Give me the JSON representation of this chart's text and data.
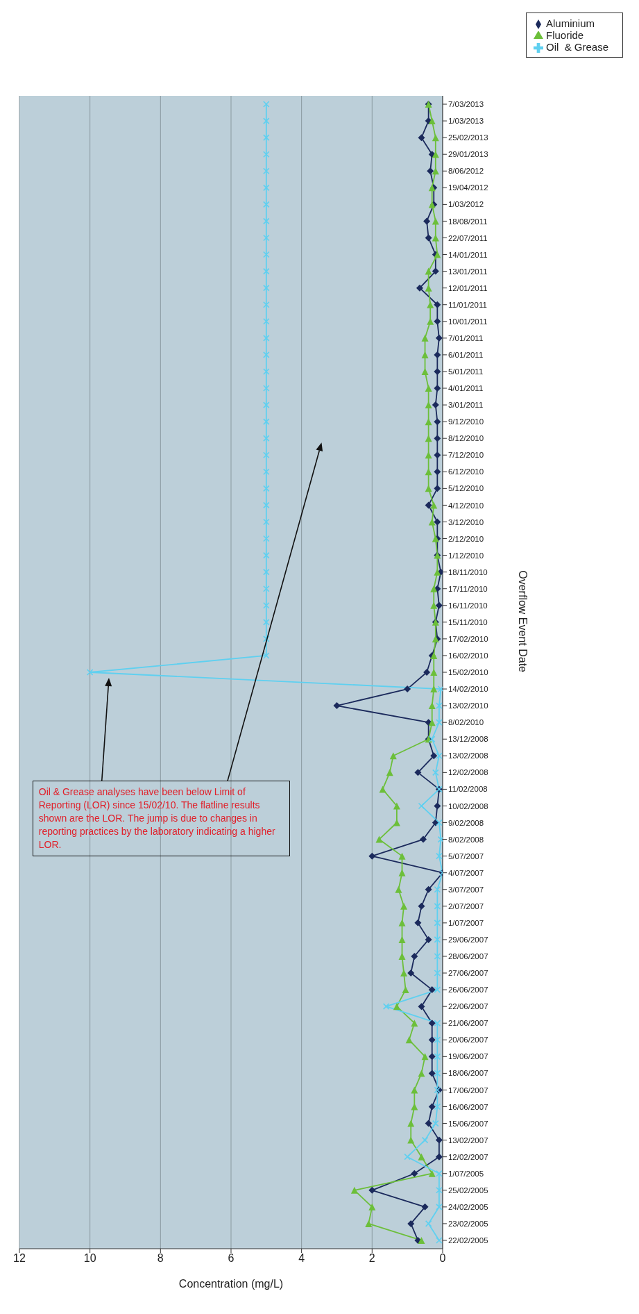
{
  "chart_data": {
    "type": "line",
    "orientation": "horizontal",
    "xlabel": "Concentration (mg/L)",
    "ylabel": "Overflow Event Date",
    "categories": [
      "7/03/2013",
      "1/03/2013",
      "25/02/2013",
      "29/01/2013",
      "8/06/2012",
      "19/04/2012",
      "1/03/2012",
      "18/08/2011",
      "22/07/2011",
      "14/01/2011",
      "13/01/2011",
      "12/01/2011",
      "11/01/2011",
      "10/01/2011",
      "7/01/2011",
      "6/01/2011",
      "5/01/2011",
      "4/01/2011",
      "3/01/2011",
      "9/12/2010",
      "8/12/2010",
      "7/12/2010",
      "6/12/2010",
      "5/12/2010",
      "4/12/2010",
      "3/12/2010",
      "2/12/2010",
      "1/12/2010",
      "18/11/2010",
      "17/11/2010",
      "16/11/2010",
      "15/11/2010",
      "17/02/2010",
      "16/02/2010",
      "15/02/2010",
      "14/02/2010",
      "13/02/2010",
      "8/02/2010",
      "13/12/2008",
      "13/02/2008",
      "12/02/2008",
      "11/02/2008",
      "10/02/2008",
      "9/02/2008",
      "8/02/2008",
      "5/07/2007",
      "4/07/2007",
      "3/07/2007",
      "2/07/2007",
      "1/07/2007",
      "29/06/2007",
      "28/06/2007",
      "27/06/2007",
      "26/06/2007",
      "22/06/2007",
      "21/06/2007",
      "20/06/2007",
      "19/06/2007",
      "18/06/2007",
      "17/06/2007",
      "16/06/2007",
      "15/06/2007",
      "13/02/2007",
      "12/02/2007",
      "1/07/2005",
      "25/02/2005",
      "24/02/2005",
      "23/02/2005",
      "22/02/2005"
    ],
    "series": [
      {
        "name": "Aluminium",
        "color": "#1b2a5c",
        "marker": "diamond",
        "values": [
          0.4,
          0.4,
          0.6,
          0.3,
          0.35,
          0.25,
          0.25,
          0.45,
          0.4,
          0.2,
          0.2,
          0.65,
          0.15,
          0.15,
          0.1,
          0.15,
          0.15,
          0.15,
          0.2,
          0.15,
          0.15,
          0.15,
          0.15,
          0.15,
          0.4,
          0.15,
          0.15,
          0.15,
          0.05,
          0.15,
          0.1,
          0.2,
          0.15,
          0.3,
          0.45,
          1.0,
          3.0,
          0.4,
          0.4,
          0.25,
          0.7,
          0.1,
          0.15,
          0.2,
          0.55,
          2.0,
          0.0,
          0.4,
          0.6,
          0.7,
          0.4,
          0.8,
          0.9,
          0.3,
          0.6,
          0.3,
          0.3,
          0.3,
          0.3,
          0.1,
          0.3,
          0.4,
          0.1,
          0.1,
          0.8,
          2.0,
          0.5,
          0.9,
          0.7
        ]
      },
      {
        "name": "Fluoride",
        "color": "#6cbf3a",
        "marker": "triangle",
        "values": [
          0.4,
          0.3,
          0.2,
          0.2,
          0.2,
          0.3,
          0.3,
          0.2,
          0.2,
          0.15,
          0.4,
          0.4,
          0.35,
          0.35,
          0.5,
          0.5,
          0.5,
          0.4,
          0.4,
          0.4,
          0.4,
          0.4,
          0.4,
          0.4,
          0.25,
          0.3,
          0.2,
          0.15,
          0.15,
          0.25,
          0.25,
          0.2,
          0.2,
          0.25,
          0.25,
          0.25,
          0.3,
          0.3,
          0.4,
          1.4,
          1.5,
          1.7,
          1.3,
          1.3,
          1.8,
          1.15,
          1.15,
          1.25,
          1.1,
          1.15,
          1.15,
          1.15,
          1.1,
          1.05,
          1.3,
          0.8,
          0.95,
          0.5,
          0.6,
          0.8,
          0.8,
          0.9,
          0.9,
          0.6,
          0.3,
          2.5,
          2.0,
          2.1,
          0.6
        ]
      },
      {
        "name": "Oil  & Grease",
        "color": "#5fd0f0",
        "marker": "cross",
        "values": [
          5,
          5,
          5,
          5,
          5,
          5,
          5,
          5,
          5,
          5,
          5,
          5,
          5,
          5,
          5,
          5,
          5,
          5,
          5,
          5,
          5,
          5,
          5,
          5,
          5,
          5,
          5,
          5,
          5,
          5,
          5,
          5,
          5,
          5,
          10,
          0.05,
          0.1,
          0.1,
          0.3,
          0.1,
          0.2,
          0.1,
          0.6,
          0.1,
          0.05,
          0.1,
          0.0,
          0.15,
          0.15,
          0.15,
          0.15,
          0.15,
          0.15,
          0.15,
          1.6,
          0.15,
          0.15,
          0.15,
          0.15,
          0.15,
          0.15,
          0.2,
          0.5,
          1.0,
          0.1,
          0.1,
          0.1,
          0.4,
          0.1
        ]
      }
    ],
    "xlim": [
      12,
      0
    ],
    "xticks": [
      0,
      2,
      4,
      6,
      8,
      10,
      12
    ],
    "grid": "x",
    "legend": "top right",
    "annotations": [
      "Oil & Grease analyses have been below Limit of Reporting (LOR) since 15/02/10. The flatline results shown are the LOR.  The jump is due to changes in reporting practices by the laboratory indicating a higher LOR."
    ]
  }
}
